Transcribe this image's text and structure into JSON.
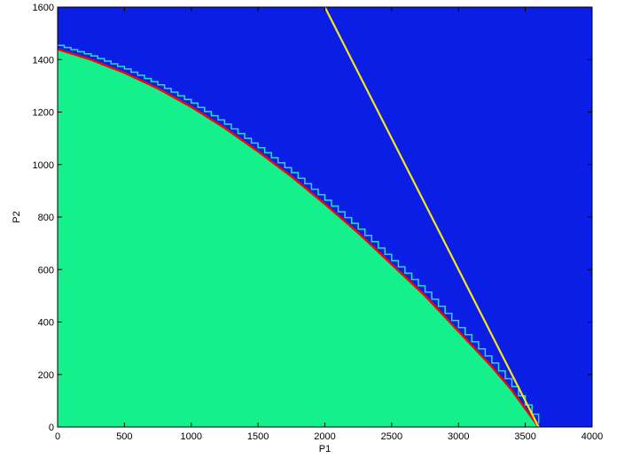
{
  "chart_data": {
    "type": "area",
    "xlabel": "P1",
    "ylabel": "P2",
    "xlim": [
      0,
      4000
    ],
    "ylim": [
      0,
      1600
    ],
    "xticks": [
      0,
      500,
      1000,
      1500,
      2000,
      2500,
      3000,
      3500,
      4000
    ],
    "yticks": [
      0,
      200,
      400,
      600,
      800,
      1000,
      1200,
      1400,
      1600
    ],
    "grid": false,
    "colors": {
      "infeasible_region": "#0a1ee6",
      "feasible_region": "#14f08c",
      "boundary_curve": "#e60a0a",
      "tangent_line": "#f5e61e"
    },
    "series": [
      {
        "values_x": [
          0,
          250,
          500,
          750,
          1000,
          1250,
          1500,
          1750,
          2000,
          2250,
          2500,
          2750,
          3000,
          3250,
          3400,
          3500,
          3550,
          3600
        ],
        "values_y": [
          1440,
          1400,
          1350,
          1290,
          1220,
          1140,
          1050,
          955,
          850,
          740,
          620,
          500,
          365,
          230,
          140,
          70,
          35,
          0
        ]
      },
      {
        "values_x": [
          2000,
          3600
        ],
        "values_y": [
          1600,
          0
        ]
      }
    ]
  }
}
